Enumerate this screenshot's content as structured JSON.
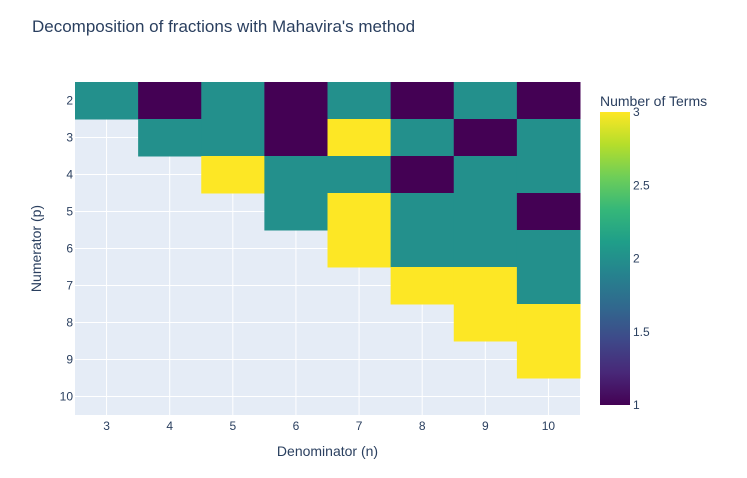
{
  "chart_data": {
    "type": "heatmap",
    "title": "Decomposition of fractions with Mahavira's method",
    "xlabel": "Denominator (n)",
    "ylabel": "Numerator (p)",
    "x": [
      3,
      4,
      5,
      6,
      7,
      8,
      9,
      10
    ],
    "y": [
      2,
      3,
      4,
      5,
      6,
      7,
      8,
      9,
      10
    ],
    "z": [
      [
        2,
        1,
        2,
        1,
        2,
        1,
        2,
        1
      ],
      [
        null,
        2,
        2,
        1,
        3,
        2,
        1,
        2
      ],
      [
        null,
        null,
        3,
        2,
        2,
        1,
        2,
        2
      ],
      [
        null,
        null,
        null,
        2,
        3,
        2,
        2,
        1
      ],
      [
        null,
        null,
        null,
        null,
        3,
        2,
        2,
        2
      ],
      [
        null,
        null,
        null,
        null,
        null,
        3,
        3,
        2
      ],
      [
        null,
        null,
        null,
        null,
        null,
        null,
        3,
        3
      ],
      [
        null,
        null,
        null,
        null,
        null,
        null,
        null,
        3
      ],
      [
        null,
        null,
        null,
        null,
        null,
        null,
        null,
        null
      ]
    ],
    "colorbar": {
      "title": "Number of Terms",
      "min": 1,
      "max": 3,
      "ticks": [
        "1",
        "1.5",
        "2",
        "2.5",
        "3"
      ],
      "tick_values": [
        1,
        1.5,
        2,
        2.5,
        3
      ]
    },
    "colorscale": "Viridis",
    "colors": {
      "plot_bg": "#e5ecf6",
      "grid": "#ffffff",
      "text": "#2a3f5f"
    }
  }
}
